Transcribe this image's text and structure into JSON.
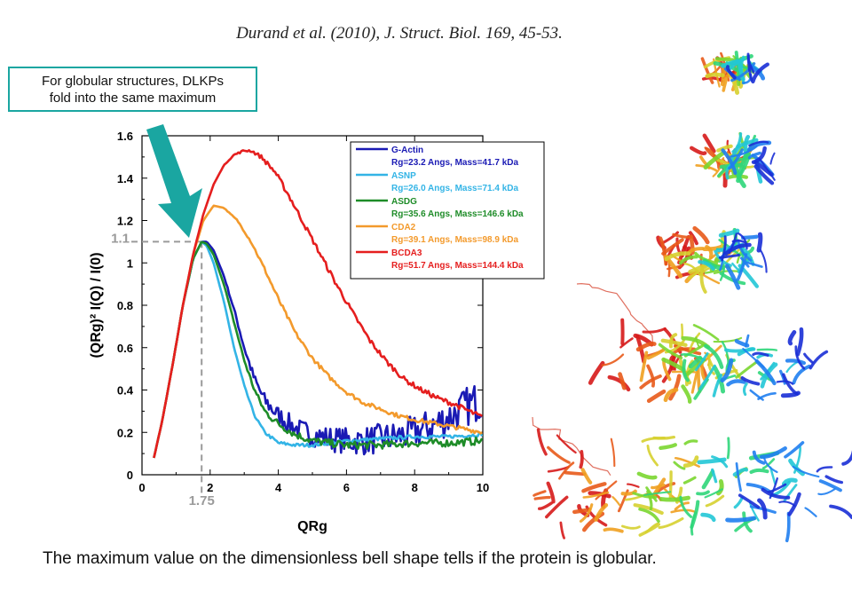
{
  "citation": "Durand et al. (2010), J. Struct. Biol. 169, 45-53.",
  "callout": {
    "line1": "For globular structures, DLKPs",
    "line2": "fold into the same maximum"
  },
  "caption": "The maximum value on the dimensionless bell shape tells if the protein is globular.",
  "colors": {
    "accent": "#1aa6a1",
    "guide": "#9a9a9a"
  },
  "chart_data": {
    "type": "line",
    "xlabel": "QRg",
    "ylabel": "(QRg)² I(Q) / I(0)",
    "xlim": [
      0,
      10
    ],
    "ylim": [
      0,
      1.6
    ],
    "xticks": [
      "0",
      "2",
      "4",
      "6",
      "8",
      "10"
    ],
    "yticks": [
      "0",
      "0.2",
      "0.4",
      "0.6",
      "0.8",
      "1",
      "1.2",
      "1.4",
      "1.6"
    ],
    "grid": false,
    "legend": "top-right",
    "annotations": {
      "x_mark": "1.75",
      "y_mark": "1.1",
      "x_value": 1.75,
      "y_value": 1.1
    },
    "series": [
      {
        "name": "G-Actin",
        "detail": "Rg=23.2 Angs, Mass=41.7 kDa",
        "color": "#1a1ab4",
        "noise": 0.06,
        "x": [
          0.35,
          0.6,
          0.9,
          1.2,
          1.5,
          1.75,
          1.9,
          2.1,
          2.4,
          2.7,
          3.0,
          3.3,
          3.6,
          4.0,
          4.5,
          5.0,
          5.5,
          6.0,
          6.5,
          7.0,
          7.5,
          8.0,
          8.5,
          9.0,
          9.5,
          10.0
        ],
        "values": [
          0.08,
          0.26,
          0.52,
          0.8,
          1.02,
          1.1,
          1.1,
          1.06,
          0.94,
          0.78,
          0.6,
          0.45,
          0.35,
          0.28,
          0.22,
          0.19,
          0.17,
          0.16,
          0.16,
          0.17,
          0.18,
          0.2,
          0.23,
          0.27,
          0.32,
          0.36
        ]
      },
      {
        "name": "ASNP",
        "detail": "Rg=26.0 Angs, Mass=71.4 kDa",
        "color": "#33b4e6",
        "noise": 0.008,
        "x": [
          0.35,
          0.6,
          0.9,
          1.2,
          1.5,
          1.75,
          1.9,
          2.1,
          2.4,
          2.7,
          3.0,
          3.3,
          3.6,
          4.0,
          4.5,
          5.0,
          5.5,
          6.0,
          7.0,
          8.0,
          9.0,
          10.0
        ],
        "values": [
          0.08,
          0.26,
          0.52,
          0.8,
          1.02,
          1.1,
          1.08,
          1.0,
          0.82,
          0.6,
          0.42,
          0.28,
          0.2,
          0.15,
          0.14,
          0.14,
          0.15,
          0.16,
          0.17,
          0.18,
          0.18,
          0.19
        ]
      },
      {
        "name": "ASDG",
        "detail": "Rg=35.6  Angs, Mass=146.6 kDa",
        "color": "#1e8c28",
        "noise": 0.018,
        "x": [
          0.35,
          0.6,
          0.9,
          1.2,
          1.5,
          1.75,
          1.9,
          2.1,
          2.4,
          2.7,
          3.0,
          3.3,
          3.6,
          4.0,
          4.5,
          5.0,
          5.5,
          6.0,
          7.0,
          8.0,
          9.0,
          10.0
        ],
        "values": [
          0.08,
          0.26,
          0.52,
          0.8,
          1.02,
          1.1,
          1.09,
          1.04,
          0.9,
          0.72,
          0.54,
          0.4,
          0.3,
          0.24,
          0.19,
          0.16,
          0.15,
          0.14,
          0.14,
          0.15,
          0.15,
          0.16
        ]
      },
      {
        "name": "CDA2",
        "detail": "Rg=39.1 Angs, Mass=98.9 kDa",
        "color": "#f39a2c",
        "noise": 0.01,
        "x": [
          0.35,
          0.6,
          0.9,
          1.2,
          1.5,
          1.8,
          2.1,
          2.4,
          2.8,
          3.2,
          3.6,
          4.0,
          4.5,
          5.0,
          5.5,
          6.0,
          6.5,
          7.0,
          7.5,
          8.0,
          9.0,
          10.0
        ],
        "values": [
          0.08,
          0.26,
          0.52,
          0.8,
          1.04,
          1.2,
          1.27,
          1.26,
          1.2,
          1.1,
          0.97,
          0.83,
          0.67,
          0.55,
          0.46,
          0.39,
          0.34,
          0.31,
          0.28,
          0.26,
          0.23,
          0.2
        ]
      },
      {
        "name": "BCDA3",
        "detail": "Rg=51.7 Angs, Mass=144.4 kDa",
        "color": "#e51e1e",
        "noise": 0.012,
        "x": [
          0.35,
          0.6,
          0.9,
          1.2,
          1.5,
          1.8,
          2.1,
          2.4,
          2.7,
          3.0,
          3.2,
          3.5,
          3.9,
          4.3,
          4.7,
          5.2,
          5.7,
          6.2,
          6.7,
          7.2,
          7.7,
          8.2,
          8.7,
          9.2,
          9.6,
          10.0
        ],
        "values": [
          0.08,
          0.26,
          0.52,
          0.8,
          1.04,
          1.23,
          1.37,
          1.46,
          1.51,
          1.53,
          1.53,
          1.5,
          1.43,
          1.32,
          1.2,
          1.05,
          0.9,
          0.76,
          0.63,
          0.53,
          0.45,
          0.4,
          0.36,
          0.33,
          0.3,
          0.27
        ]
      }
    ]
  },
  "proteins": [
    {
      "name": "G-Actin"
    },
    {
      "name": "ASNP"
    },
    {
      "name": "ASDG"
    },
    {
      "name": "CDA2"
    },
    {
      "name": "BCDA3"
    }
  ]
}
